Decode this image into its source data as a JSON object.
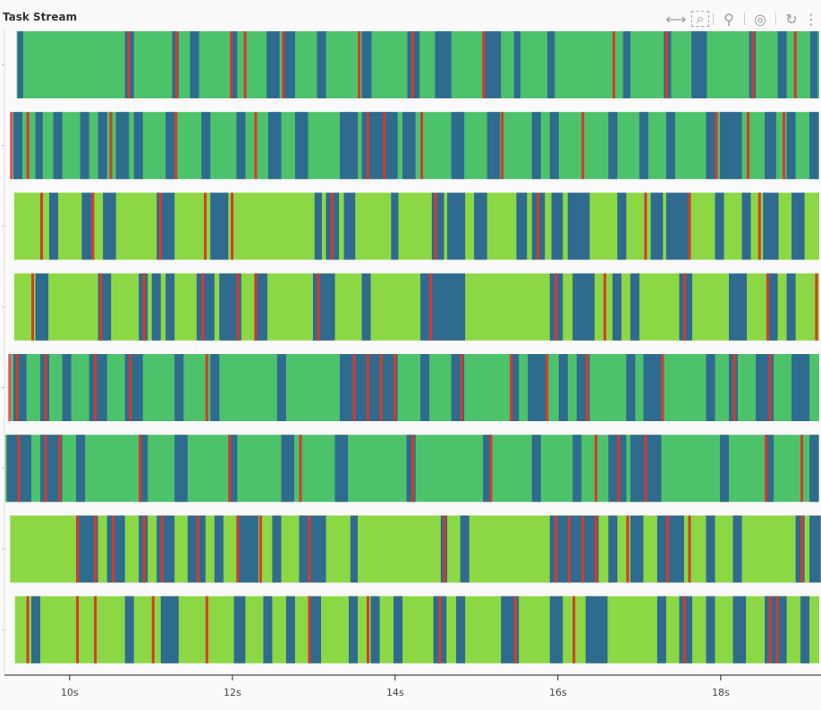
{
  "title": "Task Stream",
  "toolbar": {
    "tools": [
      {
        "name": "xpan-icon",
        "glyph": "⟷",
        "active": true
      },
      {
        "name": "box-zoom-icon",
        "glyph": "⌕",
        "active": false
      },
      {
        "name": "wheel-zoom-icon",
        "glyph": "⚲",
        "active": false
      },
      {
        "name": "tap-icon",
        "glyph": "◎",
        "active": true
      },
      {
        "name": "reset-icon",
        "glyph": "↻",
        "active": false
      },
      {
        "name": "more-icon",
        "glyph": "⋮",
        "active": false
      }
    ]
  },
  "chart_data": {
    "type": "timeline",
    "title": "Task Stream",
    "xlabel": "",
    "ylabel": "",
    "xlim": [
      9.2,
      19.21
    ],
    "x_ticks": [
      10,
      12,
      14,
      16,
      18
    ],
    "x_tick_labels": [
      "10s",
      "12s",
      "14s",
      "16s",
      "18s"
    ],
    "colors": {
      "compute_a": "#4cc26b",
      "compute_b": "#8bd844",
      "transfer": "#2f6a8f",
      "error": "#d63a2c",
      "marker": "#f05050"
    },
    "rows": [
      {
        "base": "compute_a",
        "start": 9.35,
        "marker": false,
        "blue": [
          [
            9.36,
            0.07
          ],
          [
            10.68,
            0.11
          ],
          [
            11.26,
            0.08
          ],
          [
            11.48,
            0.11
          ],
          [
            11.98,
            0.08
          ],
          [
            12.42,
            0.16
          ],
          [
            12.61,
            0.16
          ],
          [
            13.04,
            0.11
          ],
          [
            13.59,
            0.12
          ],
          [
            14.15,
            0.15
          ],
          [
            14.49,
            0.2
          ],
          [
            15.08,
            0.22
          ],
          [
            15.46,
            0.08
          ],
          [
            15.87,
            0.09
          ],
          [
            16.8,
            0.09
          ],
          [
            17.3,
            0.09
          ],
          [
            17.64,
            0.19
          ],
          [
            18.35,
            0.08
          ],
          [
            18.7,
            0.11
          ],
          [
            19.1,
            0.09
          ]
        ],
        "red": [
          10.71,
          11.3,
          11.97,
          12.14,
          12.61,
          13.54,
          14.2,
          15.07,
          16.67,
          17.32,
          18.38,
          18.9
        ]
      },
      {
        "base": "compute_a",
        "start": 9.3,
        "marker": true,
        "blue": [
          [
            9.31,
            0.11
          ],
          [
            9.58,
            0.09
          ],
          [
            9.8,
            0.11
          ],
          [
            10.13,
            0.11
          ],
          [
            10.35,
            0.11
          ],
          [
            10.57,
            0.16
          ],
          [
            10.79,
            0.11
          ],
          [
            11.18,
            0.11
          ],
          [
            11.62,
            0.11
          ],
          [
            12.05,
            0.11
          ],
          [
            12.44,
            0.16
          ],
          [
            12.77,
            0.16
          ],
          [
            13.32,
            0.22
          ],
          [
            13.59,
            0.44
          ],
          [
            14.09,
            0.16
          ],
          [
            14.69,
            0.16
          ],
          [
            15.13,
            0.16
          ],
          [
            15.68,
            0.11
          ],
          [
            15.9,
            0.11
          ],
          [
            16.62,
            0.11
          ],
          [
            17.0,
            0.11
          ],
          [
            17.33,
            0.11
          ],
          [
            17.82,
            0.11
          ],
          [
            17.99,
            0.27
          ],
          [
            18.54,
            0.14
          ],
          [
            18.81,
            0.11
          ],
          [
            19.09,
            0.11
          ]
        ],
        "red": [
          9.47,
          10.49,
          11.29,
          12.27,
          13.65,
          13.85,
          14.31,
          15.3,
          16.29,
          17.93,
          18.32,
          18.76
        ]
      },
      {
        "base": "compute_b",
        "start": 9.32,
        "marker": false,
        "blue": [
          [
            9.75,
            0.11
          ],
          [
            10.15,
            0.12
          ],
          [
            10.41,
            0.16
          ],
          [
            11.07,
            0.22
          ],
          [
            11.73,
            0.22
          ],
          [
            13.01,
            0.09
          ],
          [
            13.15,
            0.16
          ],
          [
            13.37,
            0.14
          ],
          [
            13.95,
            0.09
          ],
          [
            14.45,
            0.15
          ],
          [
            14.64,
            0.22
          ],
          [
            14.97,
            0.16
          ],
          [
            15.49,
            0.13
          ],
          [
            15.68,
            0.16
          ],
          [
            15.92,
            0.14
          ],
          [
            16.12,
            0.27
          ],
          [
            16.73,
            0.11
          ],
          [
            17.14,
            0.15
          ],
          [
            17.33,
            0.27
          ],
          [
            17.93,
            0.11
          ],
          [
            18.26,
            0.11
          ],
          [
            18.52,
            0.19
          ],
          [
            18.87,
            0.16
          ]
        ],
        "red": [
          9.64,
          10.27,
          11.1,
          11.65,
          11.98,
          13.21,
          14.48,
          15.74,
          17.06,
          17.6,
          18.46
        ]
      },
      {
        "base": "compute_b",
        "start": 9.32,
        "marker": false,
        "blue": [
          [
            9.58,
            0.16
          ],
          [
            10.35,
            0.16
          ],
          [
            10.85,
            0.11
          ],
          [
            11.01,
            0.11
          ],
          [
            11.18,
            0.11
          ],
          [
            11.56,
            0.22
          ],
          [
            11.84,
            0.27
          ],
          [
            12.27,
            0.16
          ],
          [
            12.99,
            0.27
          ],
          [
            13.59,
            0.11
          ],
          [
            14.31,
            0.55
          ],
          [
            15.9,
            0.16
          ],
          [
            16.18,
            0.27
          ],
          [
            16.67,
            0.11
          ],
          [
            16.89,
            0.11
          ],
          [
            17.49,
            0.16
          ],
          [
            18.1,
            0.22
          ],
          [
            18.59,
            0.11
          ],
          [
            18.81,
            0.11
          ]
        ],
        "red": [
          9.53,
          10.37,
          10.9,
          11.62,
          12.05,
          12.27,
          13.04,
          14.42,
          15.96,
          16.56,
          17.54,
          18.56,
          19.16
        ]
      },
      {
        "base": "compute_a",
        "start": 9.28,
        "marker": true,
        "blue": [
          [
            9.31,
            0.16
          ],
          [
            9.64,
            0.11
          ],
          [
            9.91,
            0.11
          ],
          [
            10.24,
            0.22
          ],
          [
            10.68,
            0.22
          ],
          [
            11.29,
            0.11
          ],
          [
            11.73,
            0.11
          ],
          [
            12.55,
            0.11
          ],
          [
            13.32,
            0.71
          ],
          [
            14.31,
            0.11
          ],
          [
            14.69,
            0.16
          ],
          [
            15.41,
            0.11
          ],
          [
            15.63,
            0.22
          ],
          [
            16.01,
            0.11
          ],
          [
            16.23,
            0.16
          ],
          [
            16.84,
            0.11
          ],
          [
            17.05,
            0.22
          ],
          [
            17.82,
            0.11
          ],
          [
            18.1,
            0.11
          ],
          [
            18.43,
            0.22
          ],
          [
            18.87,
            0.22
          ]
        ],
        "red": [
          9.34,
          9.69,
          10.3,
          10.73,
          11.67,
          13.48,
          13.65,
          13.81,
          13.98,
          14.8,
          15.41,
          15.85,
          16.34,
          17.27,
          18.15,
          18.59
        ]
      },
      {
        "base": "compute_a",
        "start": 9.21,
        "marker": false,
        "blue": [
          [
            9.23,
            0.3
          ],
          [
            9.64,
            0.27
          ],
          [
            10.08,
            0.11
          ],
          [
            10.85,
            0.11
          ],
          [
            11.29,
            0.16
          ],
          [
            11.95,
            0.11
          ],
          [
            12.6,
            0.16
          ],
          [
            13.26,
            0.16
          ],
          [
            14.14,
            0.11
          ],
          [
            15.08,
            0.11
          ],
          [
            15.68,
            0.11
          ],
          [
            16.18,
            0.11
          ],
          [
            16.62,
            0.22
          ],
          [
            16.89,
            0.38
          ],
          [
            17.99,
            0.11
          ],
          [
            18.54,
            0.11
          ],
          [
            19.09,
            0.11
          ]
        ],
        "red": [
          9.36,
          9.69,
          9.86,
          10.85,
          11.95,
          12.82,
          14.2,
          15.16,
          16.45,
          16.73,
          17.06,
          18.54,
          18.98
        ]
      },
      {
        "base": "compute_b",
        "start": 9.27,
        "marker": false,
        "blue": [
          [
            10.08,
            0.27
          ],
          [
            10.46,
            0.22
          ],
          [
            10.85,
            0.11
          ],
          [
            11.07,
            0.22
          ],
          [
            11.45,
            0.22
          ],
          [
            11.78,
            0.11
          ],
          [
            12.05,
            0.27
          ],
          [
            12.49,
            0.11
          ],
          [
            12.82,
            0.33
          ],
          [
            13.45,
            0.09
          ],
          [
            14.56,
            0.08
          ],
          [
            14.8,
            0.11
          ],
          [
            15.9,
            0.6
          ],
          [
            16.62,
            0.11
          ],
          [
            16.89,
            0.16
          ],
          [
            17.22,
            0.33
          ],
          [
            17.82,
            0.11
          ],
          [
            18.15,
            0.11
          ],
          [
            18.92,
            0.11
          ],
          [
            19.09,
            0.14
          ]
        ],
        "red": [
          10.08,
          10.3,
          10.52,
          10.9,
          11.12,
          11.56,
          12.05,
          12.33,
          12.93,
          14.59,
          15.96,
          16.12,
          16.29,
          16.45,
          16.84,
          17.33,
          17.6,
          18.98
        ]
      },
      {
        "base": "compute_b",
        "start": 9.33,
        "marker": false,
        "blue": [
          [
            9.53,
            0.11
          ],
          [
            10.68,
            0.11
          ],
          [
            11.12,
            0.22
          ],
          [
            12.02,
            0.14
          ],
          [
            12.38,
            0.11
          ],
          [
            12.66,
            0.11
          ],
          [
            12.93,
            0.16
          ],
          [
            13.43,
            0.11
          ],
          [
            13.7,
            0.11
          ],
          [
            13.98,
            0.11
          ],
          [
            14.47,
            0.16
          ],
          [
            14.75,
            0.11
          ],
          [
            15.3,
            0.22
          ],
          [
            15.9,
            0.16
          ],
          [
            16.34,
            0.27
          ],
          [
            17.22,
            0.11
          ],
          [
            17.49,
            0.16
          ],
          [
            17.82,
            0.11
          ],
          [
            18.15,
            0.16
          ],
          [
            18.54,
            0.27
          ],
          [
            18.98,
            0.11
          ]
        ],
        "red": [
          9.47,
          10.08,
          10.3,
          11.01,
          11.67,
          12.93,
          13.65,
          14.53,
          15.46,
          16.18,
          17.54,
          18.59,
          18.68
        ]
      }
    ]
  }
}
